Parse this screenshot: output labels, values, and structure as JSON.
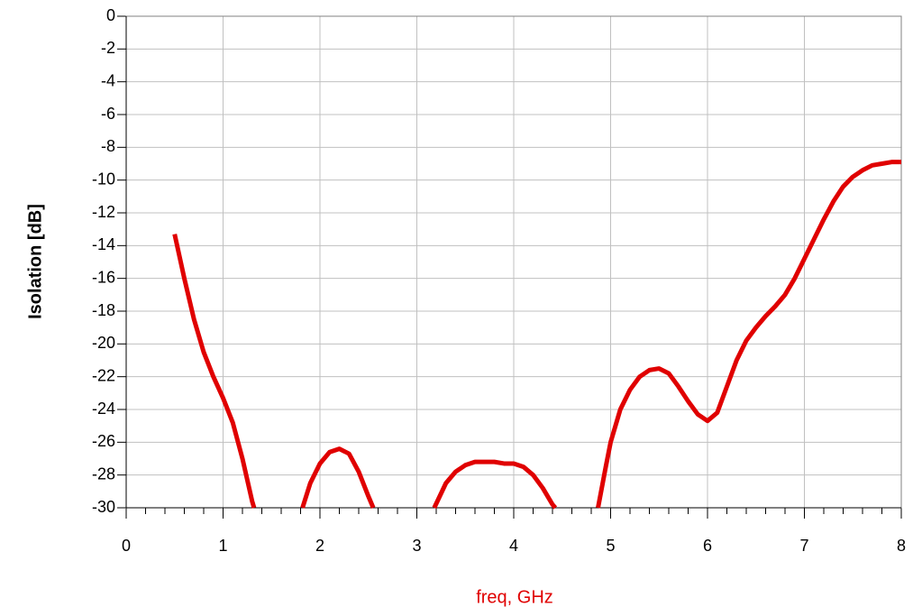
{
  "chart_data": {
    "type": "line",
    "xlabel": "freq, GHz",
    "ylabel": "Isolation [dB]",
    "xlim": [
      0,
      8
    ],
    "xticks": [
      0,
      1,
      2,
      3,
      4,
      5,
      6,
      7,
      8
    ],
    "xminorticks": [
      0.2,
      0.4,
      0.6,
      0.8,
      1.2,
      1.4,
      1.6,
      1.8,
      2.2,
      2.4,
      2.6,
      2.8,
      3.2,
      3.4,
      3.6,
      3.8,
      4.2,
      4.4,
      4.6,
      4.8,
      5.2,
      5.4,
      5.6,
      5.8,
      6.2,
      6.4,
      6.6,
      6.8,
      7.2,
      7.4,
      7.6,
      7.8
    ],
    "ylim": [
      -30,
      0
    ],
    "yticks": [
      0,
      -2,
      -4,
      -6,
      -8,
      -10,
      -12,
      -14,
      -16,
      -18,
      -20,
      -22,
      -24,
      -26,
      -28,
      -30
    ],
    "grid": true,
    "series": [
      {
        "color": "#e00000",
        "x": [
          0.5,
          0.6,
          0.7,
          0.8,
          0.9,
          1.0,
          1.1,
          1.2,
          1.3,
          1.32,
          1.5,
          1.82,
          1.9,
          2.0,
          2.1,
          2.2,
          2.3,
          2.4,
          2.5,
          2.55,
          2.9,
          3.18,
          3.3,
          3.4,
          3.5,
          3.6,
          3.7,
          3.8,
          3.9,
          4.0,
          4.1,
          4.2,
          4.3,
          4.4,
          4.43,
          4.6,
          4.87,
          4.95,
          5.0,
          5.1,
          5.2,
          5.3,
          5.4,
          5.5,
          5.6,
          5.7,
          5.8,
          5.9,
          6.0,
          6.1,
          6.2,
          6.3,
          6.4,
          6.5,
          6.6,
          6.7,
          6.8,
          6.9,
          7.0,
          7.1,
          7.2,
          7.3,
          7.4,
          7.5,
          7.6,
          7.7,
          7.8,
          7.9,
          8.0
        ],
        "values": [
          -13.3,
          -16,
          -18.5,
          -20.5,
          -22,
          -23.3,
          -24.8,
          -27,
          -29.6,
          -30,
          null,
          -30,
          -28.5,
          -27.3,
          -26.6,
          -26.4,
          -26.7,
          -27.8,
          -29.3,
          -30,
          null,
          -30,
          -28.5,
          -27.8,
          -27.4,
          -27.2,
          -27.2,
          -27.2,
          -27.3,
          -27.3,
          -27.5,
          -28.0,
          -28.8,
          -29.8,
          -30,
          null,
          -30,
          -27.5,
          -26,
          -24,
          -22.8,
          -22,
          -21.6,
          -21.5,
          -21.8,
          -22.6,
          -23.5,
          -24.3,
          -24.7,
          -24.2,
          -22.6,
          -21,
          -19.8,
          -19,
          -18.3,
          -17.7,
          -17,
          -16,
          -14.8,
          -13.6,
          -12.4,
          -11.3,
          -10.4,
          -9.8,
          -9.4,
          -9.1,
          -9.0,
          -8.9,
          -8.9
        ]
      }
    ]
  }
}
